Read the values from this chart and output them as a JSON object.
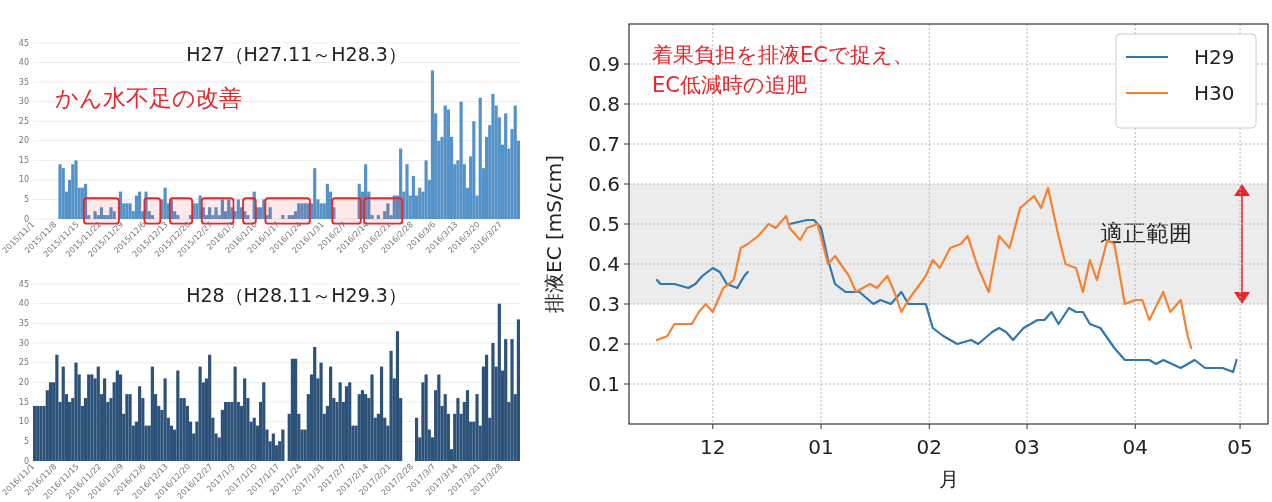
{
  "chart_data": [
    {
      "type": "bar",
      "title": "H27（H27.11～H28.3）",
      "annotations": [
        "かん水不足の改善"
      ],
      "color": "#5592c8",
      "grid": "y",
      "xlim": [
        "2015-11-01",
        "2016-04-02"
      ],
      "ylim": [
        0,
        45
      ],
      "yticks": [
        0,
        5,
        10,
        15,
        20,
        25,
        30,
        35,
        40,
        45
      ],
      "xticks": [
        {
          "value": "2015-11-01",
          "label": "2015/11/1"
        },
        {
          "value": "2015-11-08",
          "label": "2015/11/8"
        },
        {
          "value": "2015-11-15",
          "label": "2015/11/15"
        },
        {
          "value": "2015-11-22",
          "label": "2015/11/22"
        },
        {
          "value": "2015-11-29",
          "label": "2015/11/29"
        },
        {
          "value": "2015-12-06",
          "label": "2015/12/6"
        },
        {
          "value": "2015-12-13",
          "label": "2015/12/13"
        },
        {
          "value": "2015-12-20",
          "label": "2015/12/20"
        },
        {
          "value": "2015-12-27",
          "label": "2015/12/27"
        },
        {
          "value": "2016-01-03",
          "label": "2016/1/3"
        },
        {
          "value": "2016-01-10",
          "label": "2016/1/10"
        },
        {
          "value": "2016-01-17",
          "label": "2016/1/17"
        },
        {
          "value": "2016-01-24",
          "label": "2016/1/24"
        },
        {
          "value": "2016-01-31",
          "label": "2016/1/31"
        },
        {
          "value": "2016-02-07",
          "label": "2016/2/7"
        },
        {
          "value": "2016-02-14",
          "label": "2016/2/14"
        },
        {
          "value": "2016-02-21",
          "label": "2016/2/21"
        },
        {
          "value": "2016-02-28",
          "label": "2016/2/28"
        },
        {
          "value": "2016-03-06",
          "label": "2016/3/6"
        },
        {
          "value": "2016-03-13",
          "label": "2016/3/13"
        },
        {
          "value": "2016-03-20",
          "label": "2016/3/20"
        },
        {
          "value": "2016-03-27",
          "label": "2016/3/27"
        }
      ],
      "bands": [
        {
          "axis": "x",
          "from": "2015-11-17",
          "to": "2015-11-28",
          "color": "#e8262a"
        },
        {
          "axis": "x",
          "from": "2015-12-06",
          "to": "2015-12-11",
          "color": "#e8262a"
        },
        {
          "axis": "x",
          "from": "2015-12-14",
          "to": "2015-12-21",
          "color": "#e8262a"
        },
        {
          "axis": "x",
          "from": "2015-12-24",
          "to": "2016-01-03",
          "color": "#e8262a"
        },
        {
          "axis": "x",
          "from": "2016-01-06",
          "to": "2016-01-10",
          "color": "#e8262a"
        },
        {
          "axis": "x",
          "from": "2016-01-13",
          "to": "2016-01-27",
          "color": "#e8262a"
        },
        {
          "axis": "x",
          "from": "2016-02-03",
          "to": "2016-02-12",
          "color": "#e8262a"
        },
        {
          "axis": "x",
          "from": "2016-02-13",
          "to": "2016-02-25",
          "color": "#e8262a"
        }
      ],
      "x": [
        "2015-11-09",
        "2015-11-10",
        "2015-11-11",
        "2015-11-12",
        "2015-11-13",
        "2015-11-14",
        "2015-11-15",
        "2015-11-16",
        "2015-11-17",
        "2015-11-18",
        "2015-11-19",
        "2015-11-20",
        "2015-11-21",
        "2015-11-22",
        "2015-11-23",
        "2015-11-24",
        "2015-11-25",
        "2015-11-26",
        "2015-11-27",
        "2015-11-28",
        "2015-11-29",
        "2015-11-30",
        "2015-12-01",
        "2015-12-02",
        "2015-12-03",
        "2015-12-04",
        "2015-12-05",
        "2015-12-06",
        "2015-12-07",
        "2015-12-08",
        "2015-12-09",
        "2015-12-10",
        "2015-12-11",
        "2015-12-12",
        "2015-12-13",
        "2015-12-14",
        "2015-12-15",
        "2015-12-16",
        "2015-12-17",
        "2015-12-18",
        "2015-12-19",
        "2015-12-20",
        "2015-12-21",
        "2015-12-22",
        "2015-12-23",
        "2015-12-24",
        "2015-12-25",
        "2015-12-26",
        "2015-12-27",
        "2015-12-28",
        "2015-12-29",
        "2015-12-30",
        "2015-12-31",
        "2016-01-01",
        "2016-01-02",
        "2016-01-03",
        "2016-01-04",
        "2016-01-05",
        "2016-01-06",
        "2016-01-07",
        "2016-01-08",
        "2016-01-09",
        "2016-01-10",
        "2016-01-11",
        "2016-01-12",
        "2016-01-13",
        "2016-01-14",
        "2016-01-15",
        "2016-01-16",
        "2016-01-17",
        "2016-01-18",
        "2016-01-19",
        "2016-01-20",
        "2016-01-21",
        "2016-01-22",
        "2016-01-23",
        "2016-01-24",
        "2016-01-25",
        "2016-01-26",
        "2016-01-27",
        "2016-01-28",
        "2016-01-29",
        "2016-01-30",
        "2016-01-31",
        "2016-02-01",
        "2016-02-02",
        "2016-02-03",
        "2016-02-04",
        "2016-02-05",
        "2016-02-06",
        "2016-02-07",
        "2016-02-08",
        "2016-02-09",
        "2016-02-10",
        "2016-02-11",
        "2016-02-12",
        "2016-02-13",
        "2016-02-14",
        "2016-02-15",
        "2016-02-16",
        "2016-02-17",
        "2016-02-18",
        "2016-02-19",
        "2016-02-20",
        "2016-02-21",
        "2016-02-22",
        "2016-02-23",
        "2016-02-24",
        "2016-02-25",
        "2016-02-26",
        "2016-02-27",
        "2016-02-28",
        "2016-02-29",
        "2016-03-01",
        "2016-03-02",
        "2016-03-03",
        "2016-03-04",
        "2016-03-05",
        "2016-03-06",
        "2016-03-07",
        "2016-03-08",
        "2016-03-09",
        "2016-03-10",
        "2016-03-11",
        "2016-03-12",
        "2016-03-13",
        "2016-03-14",
        "2016-03-15",
        "2016-03-16",
        "2016-03-17",
        "2016-03-18",
        "2016-03-19",
        "2016-03-20",
        "2016-03-21",
        "2016-03-22",
        "2016-03-23",
        "2016-03-24",
        "2016-03-25",
        "2016-03-26",
        "2016-03-27",
        "2016-03-28",
        "2016-03-29",
        "2016-03-30",
        "2016-03-31",
        "2016-04-01"
      ],
      "values": [
        14,
        13,
        7,
        10,
        14,
        15,
        8,
        8,
        9,
        1,
        0,
        2,
        1,
        3,
        1,
        1,
        3,
        2,
        0,
        7,
        4,
        4,
        4,
        2,
        6,
        7,
        2,
        7,
        2,
        1,
        0,
        0,
        5,
        8,
        4,
        5,
        2,
        1,
        0,
        0,
        0,
        1,
        4,
        4,
        6,
        3,
        1,
        3,
        1,
        3,
        1,
        5,
        2,
        5,
        3,
        2,
        5,
        3,
        2,
        1,
        0,
        7,
        3,
        3,
        5,
        1,
        3,
        0,
        0,
        0,
        1,
        0,
        1,
        1,
        2,
        4,
        4,
        4,
        4,
        4,
        13,
        5,
        4,
        4,
        9,
        7,
        3,
        0,
        0,
        0,
        0,
        0,
        0,
        0,
        9,
        7,
        14,
        7,
        1,
        0,
        1,
        0,
        2,
        4,
        1,
        6,
        6,
        18,
        7,
        14,
        6,
        11,
        6,
        8,
        7,
        15,
        10,
        38,
        27,
        20,
        21,
        29,
        28,
        21,
        14,
        15,
        30,
        14,
        8,
        16,
        25,
        6,
        31,
        13,
        21,
        24,
        32,
        29,
        26,
        19,
        27,
        18,
        23,
        29,
        20
      ]
    },
    {
      "type": "bar",
      "title": "H28（H28.11～H29.3）",
      "color": "#2d5279",
      "grid": "y",
      "xlim": [
        "2016-11-01",
        "2017-04-03"
      ],
      "ylim": [
        0,
        45
      ],
      "yticks": [
        0,
        5,
        10,
        15,
        20,
        25,
        30,
        35,
        40,
        45
      ],
      "xticks": [
        {
          "value": "2016-11-01",
          "label": "2016/11/1"
        },
        {
          "value": "2016-11-08",
          "label": "2016/11/8"
        },
        {
          "value": "2016-11-15",
          "label": "2016/11/15"
        },
        {
          "value": "2016-11-22",
          "label": "2016/11/22"
        },
        {
          "value": "2016-11-29",
          "label": "2016/11/29"
        },
        {
          "value": "2016-12-06",
          "label": "2016/12/6"
        },
        {
          "value": "2016-12-13",
          "label": "2016/12/13"
        },
        {
          "value": "2016-12-20",
          "label": "2016/12/20"
        },
        {
          "value": "2016-12-27",
          "label": "2016/12/27"
        },
        {
          "value": "2017-01-03",
          "label": "2017/1/3"
        },
        {
          "value": "2017-01-10",
          "label": "2017/1/10"
        },
        {
          "value": "2017-01-17",
          "label": "2017/1/17"
        },
        {
          "value": "2017-01-24",
          "label": "2017/1/24"
        },
        {
          "value": "2017-01-31",
          "label": "2017/1/31"
        },
        {
          "value": "2017-02-07",
          "label": "2017/2/7"
        },
        {
          "value": "2017-02-14",
          "label": "2017/2/14"
        },
        {
          "value": "2017-02-21",
          "label": "2017/2/21"
        },
        {
          "value": "2017-02-28",
          "label": "2017/2/28"
        },
        {
          "value": "2017-03-07",
          "label": "2017/3/7"
        },
        {
          "value": "2017-03-14",
          "label": "2017/3/14"
        },
        {
          "value": "2017-03-21",
          "label": "2017/3/21"
        },
        {
          "value": "2017-03-28",
          "label": "2017/3/28"
        }
      ],
      "x": [
        "2016-11-01",
        "2016-11-02",
        "2016-11-03",
        "2016-11-04",
        "2016-11-05",
        "2016-11-06",
        "2016-11-07",
        "2016-11-08",
        "2016-11-09",
        "2016-11-10",
        "2016-11-11",
        "2016-11-12",
        "2016-11-13",
        "2016-11-14",
        "2016-11-15",
        "2016-11-16",
        "2016-11-17",
        "2016-11-18",
        "2016-11-19",
        "2016-11-20",
        "2016-11-21",
        "2016-11-22",
        "2016-11-23",
        "2016-11-24",
        "2016-11-25",
        "2016-11-26",
        "2016-11-27",
        "2016-11-28",
        "2016-11-29",
        "2016-11-30",
        "2016-12-01",
        "2016-12-02",
        "2016-12-03",
        "2016-12-04",
        "2016-12-05",
        "2016-12-06",
        "2016-12-07",
        "2016-12-08",
        "2016-12-09",
        "2016-12-10",
        "2016-12-11",
        "2016-12-12",
        "2016-12-13",
        "2016-12-14",
        "2016-12-15",
        "2016-12-16",
        "2016-12-17",
        "2016-12-18",
        "2016-12-19",
        "2016-12-20",
        "2016-12-21",
        "2016-12-22",
        "2016-12-23",
        "2016-12-24",
        "2016-12-25",
        "2016-12-26",
        "2016-12-27",
        "2016-12-28",
        "2016-12-29",
        "2016-12-30",
        "2016-12-31",
        "2017-01-01",
        "2017-01-02",
        "2017-01-03",
        "2017-01-04",
        "2017-01-05",
        "2017-01-06",
        "2017-01-07",
        "2017-01-08",
        "2017-01-09",
        "2017-01-10",
        "2017-01-11",
        "2017-01-12",
        "2017-01-13",
        "2017-01-14",
        "2017-01-15",
        "2017-01-16",
        "2017-01-17",
        "2017-01-18",
        "2017-01-20",
        "2017-01-21",
        "2017-01-22",
        "2017-01-23",
        "2017-01-24",
        "2017-01-25",
        "2017-01-26",
        "2017-01-27",
        "2017-01-28",
        "2017-01-29",
        "2017-01-30",
        "2017-01-31",
        "2017-02-01",
        "2017-02-02",
        "2017-02-03",
        "2017-02-04",
        "2017-02-05",
        "2017-02-06",
        "2017-02-07",
        "2017-02-08",
        "2017-02-09",
        "2017-02-10",
        "2017-02-11",
        "2017-02-12",
        "2017-02-13",
        "2017-02-14",
        "2017-02-15",
        "2017-02-16",
        "2017-02-17",
        "2017-02-18",
        "2017-02-19",
        "2017-02-20",
        "2017-02-21",
        "2017-02-22",
        "2017-02-23",
        "2017-02-24",
        "2017-03-01",
        "2017-03-02",
        "2017-03-03",
        "2017-03-04",
        "2017-03-05",
        "2017-03-06",
        "2017-03-07",
        "2017-03-08",
        "2017-03-09",
        "2017-03-10",
        "2017-03-11",
        "2017-03-12",
        "2017-03-13",
        "2017-03-14",
        "2017-03-15",
        "2017-03-16",
        "2017-03-17",
        "2017-03-18",
        "2017-03-19",
        "2017-03-20",
        "2017-03-21",
        "2017-03-22",
        "2017-03-23",
        "2017-03-24",
        "2017-03-25",
        "2017-03-26",
        "2017-03-27",
        "2017-03-28",
        "2017-03-29",
        "2017-03-30",
        "2017-03-31",
        "2017-04-01",
        "2017-04-02"
      ],
      "values": [
        14,
        14,
        14,
        14,
        18,
        20,
        20,
        27,
        15,
        24,
        17,
        15,
        16,
        25,
        22,
        14,
        16,
        22,
        22,
        21,
        24,
        17,
        21,
        15,
        16,
        20,
        23,
        22,
        12,
        17,
        17,
        9,
        10,
        19,
        16,
        9,
        9,
        24,
        17,
        14,
        13,
        21,
        11,
        9,
        8,
        23,
        16,
        16,
        14,
        10,
        7,
        10,
        24,
        20,
        21,
        27,
        11,
        7,
        6,
        13,
        15,
        15,
        15,
        24,
        15,
        14,
        21,
        16,
        10,
        11,
        9,
        15,
        20,
        8,
        5,
        7,
        4,
        5,
        8,
        12,
        26,
        26,
        12,
        8,
        8,
        17,
        22,
        29,
        21,
        25,
        12,
        14,
        24,
        16,
        15,
        20,
        15,
        19,
        20,
        9,
        9,
        17,
        18,
        17,
        16,
        22,
        11,
        12,
        24,
        11,
        9,
        28,
        21,
        33,
        16,
        11,
        6,
        20,
        22,
        8,
        6,
        18,
        22,
        14,
        17,
        12,
        3,
        12,
        16,
        12,
        15,
        18,
        10,
        10,
        17,
        9,
        24,
        27,
        11,
        30,
        24,
        40,
        23,
        31,
        15,
        31,
        17,
        36
      ]
    },
    {
      "type": "line",
      "xlabel": "月",
      "ylabel": "排液EC [mS/cm]",
      "annotations": [
        "着果負担を排液ECで捉え、\nEC低減時の追肥"
      ],
      "grid": true,
      "legend": "top right",
      "xlim": [
        "2017-11-07",
        "2018-05-09"
      ],
      "ylim": [
        0,
        1
      ],
      "yticks": [
        0.1,
        0.2,
        0.3,
        0.4,
        0.5,
        0.6,
        0.7,
        0.8,
        0.9
      ],
      "xticks": [
        {
          "value": "2017-12-01",
          "label": "12"
        },
        {
          "value": "2018-01-01",
          "label": "01"
        },
        {
          "value": "2018-02-01",
          "label": "02"
        },
        {
          "value": "2018-03-01",
          "label": "03"
        },
        {
          "value": "2018-04-01",
          "label": "04"
        },
        {
          "value": "2018-05-01",
          "label": "05"
        }
      ],
      "bands": [
        {
          "axis": "y",
          "from": 0.3,
          "to": 0.6,
          "label": "適正範囲",
          "color": "#ebeceb"
        }
      ],
      "series": [
        {
          "name": "H29",
          "color": "#2f77b1",
          "x": [
            "2017-11-15",
            "2017-11-16",
            "2017-11-20",
            "2017-11-24",
            "2017-11-26",
            "2017-11-28",
            "2017-12-01",
            "2017-12-03",
            "2017-12-05",
            "2017-12-08",
            "2017-12-10",
            "2017-12-11",
            "2017-12-17",
            "2017-12-23",
            "2017-12-28",
            "2017-12-30",
            "2018-01-01",
            "2018-01-03",
            "2018-01-05",
            "2018-01-08",
            "2018-01-12",
            "2018-01-16",
            "2018-01-18",
            "2018-01-21",
            "2018-01-24",
            "2018-01-26",
            "2018-01-30",
            "2018-01-31",
            "2018-02-02",
            "2018-02-05",
            "2018-02-09",
            "2018-02-13",
            "2018-02-15",
            "2018-02-19",
            "2018-02-21",
            "2018-02-23",
            "2018-02-25",
            "2018-02-28",
            "2018-03-04",
            "2018-03-06",
            "2018-03-08",
            "2018-03-10",
            "2018-03-13",
            "2018-03-15",
            "2018-03-17",
            "2018-03-19",
            "2018-03-22",
            "2018-03-26",
            "2018-03-29",
            "2018-04-02",
            "2018-04-05",
            "2018-04-07",
            "2018-04-09",
            "2018-04-14",
            "2018-04-18",
            "2018-04-21",
            "2018-04-26",
            "2018-04-29",
            "2018-04-30"
          ],
          "values": [
            0.36,
            0.35,
            0.35,
            0.34,
            0.35,
            0.37,
            0.39,
            0.38,
            0.35,
            0.34,
            0.37,
            0.38,
            null,
            0.5,
            0.51,
            0.51,
            0.49,
            0.41,
            0.35,
            0.33,
            0.33,
            0.3,
            0.31,
            0.3,
            0.33,
            0.3,
            0.3,
            0.3,
            0.24,
            0.22,
            0.2,
            0.21,
            0.2,
            0.23,
            0.24,
            0.23,
            0.21,
            0.24,
            0.26,
            0.26,
            0.28,
            0.25,
            0.29,
            0.28,
            0.28,
            0.25,
            0.24,
            0.19,
            0.16,
            0.16,
            0.16,
            0.15,
            0.16,
            0.14,
            0.16,
            0.14,
            0.14,
            0.13,
            0.16
          ]
        },
        {
          "name": "H30",
          "color": "#f58232",
          "x": [
            "2017-11-15",
            "2017-11-18",
            "2017-11-20",
            "2017-11-24",
            "2017-11-25",
            "2017-11-27",
            "2017-11-29",
            "2017-12-01",
            "2017-12-04",
            "2017-12-07",
            "2017-12-09",
            "2017-12-11",
            "2017-12-14",
            "2017-12-17",
            "2017-12-19",
            "2017-12-22",
            "2017-12-23",
            "2017-12-26",
            "2017-12-28",
            "2017-12-31",
            "2018-01-03",
            "2018-01-05",
            "2018-01-09",
            "2018-01-11",
            "2018-01-15",
            "2018-01-17",
            "2018-01-20",
            "2018-01-22",
            "2018-01-24",
            "2018-01-26",
            "2018-01-31",
            "2018-02-02",
            "2018-02-04",
            "2018-02-07",
            "2018-02-10",
            "2018-02-12",
            "2018-02-15",
            "2018-02-18",
            "2018-02-21",
            "2018-02-24",
            "2018-02-27",
            "2018-03-03",
            "2018-03-05",
            "2018-03-07",
            "2018-03-10",
            "2018-03-12",
            "2018-03-15",
            "2018-03-17",
            "2018-03-19",
            "2018-03-21",
            "2018-03-24",
            "2018-03-26",
            "2018-03-29",
            "2018-04-01",
            "2018-04-03",
            "2018-04-05",
            "2018-04-09",
            "2018-04-11",
            "2018-04-14",
            "2018-04-16",
            "2018-04-17"
          ],
          "values": [
            0.21,
            0.22,
            0.25,
            0.25,
            0.25,
            0.28,
            0.3,
            0.28,
            0.34,
            0.36,
            0.44,
            0.45,
            0.47,
            0.5,
            0.49,
            0.52,
            0.49,
            0.46,
            0.49,
            0.5,
            0.4,
            0.42,
            0.37,
            0.33,
            0.35,
            0.34,
            0.37,
            0.33,
            0.28,
            0.31,
            0.37,
            0.41,
            0.39,
            0.44,
            0.45,
            0.47,
            0.39,
            0.33,
            0.47,
            0.44,
            0.54,
            0.57,
            0.54,
            0.59,
            0.47,
            0.4,
            0.39,
            0.33,
            0.41,
            0.36,
            0.46,
            0.45,
            0.3,
            0.31,
            0.31,
            0.26,
            0.33,
            0.28,
            0.31,
            0.22,
            0.19
          ]
        }
      ]
    }
  ]
}
